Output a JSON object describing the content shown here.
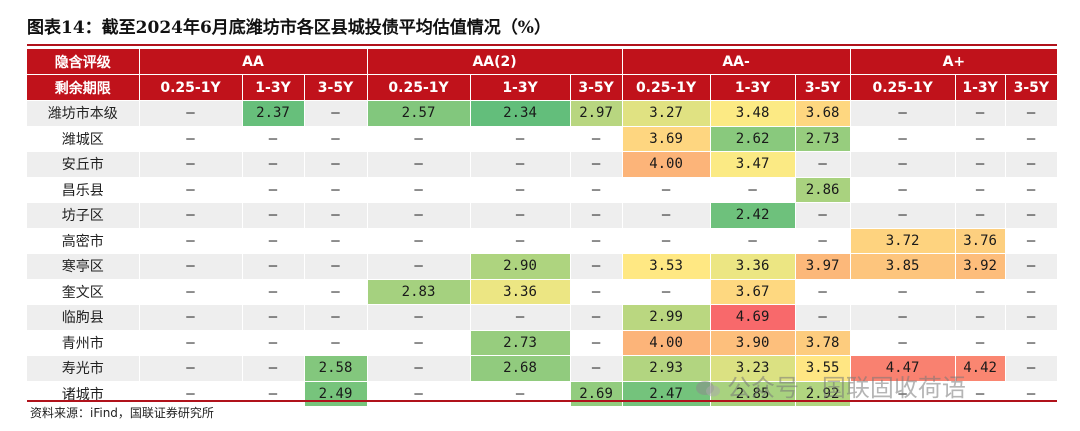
{
  "title": "图表14：截至2024年6月底潍坊市各区县城投债平均估值情况（%）",
  "header": {
    "rating_label": "隐含评级",
    "term_label": "剩余期限",
    "ratings": [
      "AA",
      "AA(2)",
      "AA-",
      "A+"
    ],
    "terms": [
      "0.25-1Y",
      "1-3Y",
      "3-5Y",
      "0.25-1Y",
      "1-3Y",
      "3-5Y",
      "0.25-1Y",
      "1-3Y",
      "3-5Y",
      "0.25-1Y",
      "1-3Y",
      "3-5Y"
    ]
  },
  "rows": [
    {
      "name": "潍坊市本级",
      "values": [
        "–",
        "2.37",
        "–",
        "2.57",
        "2.34",
        "2.97",
        "3.27",
        "3.48",
        "3.68",
        "–",
        "–",
        "–"
      ]
    },
    {
      "name": "潍城区",
      "values": [
        "–",
        "–",
        "–",
        "–",
        "–",
        "–",
        "3.69",
        "2.62",
        "2.73",
        "–",
        "–",
        "–"
      ]
    },
    {
      "name": "安丘市",
      "values": [
        "–",
        "–",
        "–",
        "–",
        "–",
        "–",
        "4.00",
        "3.47",
        "–",
        "–",
        "–",
        "–"
      ]
    },
    {
      "name": "昌乐县",
      "values": [
        "–",
        "–",
        "–",
        "–",
        "–",
        "–",
        "–",
        "–",
        "2.86",
        "–",
        "–",
        "–"
      ]
    },
    {
      "name": "坊子区",
      "values": [
        "–",
        "–",
        "–",
        "–",
        "–",
        "–",
        "–",
        "2.42",
        "–",
        "–",
        "–",
        "–"
      ]
    },
    {
      "name": "高密市",
      "values": [
        "–",
        "–",
        "–",
        "–",
        "–",
        "–",
        "–",
        "–",
        "–",
        "3.72",
        "3.76",
        "–"
      ]
    },
    {
      "name": "寒亭区",
      "values": [
        "–",
        "–",
        "–",
        "–",
        "2.90",
        "–",
        "3.53",
        "3.36",
        "3.97",
        "3.85",
        "3.92",
        "–"
      ]
    },
    {
      "name": "奎文区",
      "values": [
        "–",
        "–",
        "–",
        "2.83",
        "3.36",
        "–",
        "–",
        "3.67",
        "–",
        "–",
        "–",
        "–"
      ]
    },
    {
      "name": "临朐县",
      "values": [
        "–",
        "–",
        "–",
        "–",
        "–",
        "–",
        "2.99",
        "4.69",
        "–",
        "–",
        "–",
        "–"
      ]
    },
    {
      "name": "青州市",
      "values": [
        "–",
        "–",
        "–",
        "–",
        "2.73",
        "–",
        "4.00",
        "3.90",
        "3.78",
        "–",
        "–",
        "–"
      ]
    },
    {
      "name": "寿光市",
      "values": [
        "–",
        "–",
        "2.58",
        "–",
        "2.68",
        "–",
        "2.93",
        "3.23",
        "3.55",
        "4.47",
        "4.42",
        "–"
      ]
    },
    {
      "name": "诸城市",
      "values": [
        "–",
        "–",
        "2.49",
        "–",
        "–",
        "2.69",
        "2.47",
        "2.85",
        "2.92",
        "–",
        "–",
        "–"
      ]
    }
  ],
  "colors": {
    "header_red": "#c0121b",
    "scale_low": "#63be7b",
    "scale_mid": "#ffeb84",
    "scale_high": "#f8696b"
  },
  "scale": {
    "min": 2.34,
    "mid": 3.5,
    "max": 4.69
  },
  "source": "资料来源：iFind，国联证券研究所",
  "watermark": "公众号 · 国联固收荷语"
}
